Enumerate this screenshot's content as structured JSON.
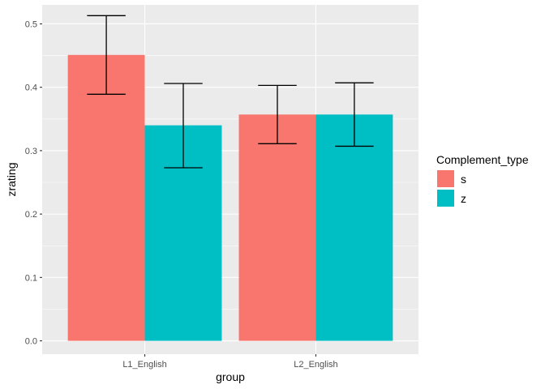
{
  "chart_data": {
    "type": "bar",
    "categories": [
      "L1_English",
      "L2_English"
    ],
    "series": [
      {
        "name": "s",
        "color": "#F8766D",
        "values": [
          0.451,
          0.357
        ],
        "error_low": [
          0.389,
          0.311
        ],
        "error_high": [
          0.513,
          0.403
        ]
      },
      {
        "name": "z",
        "color": "#00BFC4",
        "values": [
          0.34,
          0.357
        ],
        "error_low": [
          0.273,
          0.307
        ],
        "error_high": [
          0.406,
          0.407
        ]
      }
    ],
    "xlabel": "group",
    "ylabel": "zrating",
    "ylim": [
      -0.021,
      0.53
    ],
    "yticks": [
      0.0,
      0.1,
      0.2,
      0.3,
      0.4,
      0.5
    ],
    "ytick_labels": [
      "0.0",
      "0.1",
      "0.2",
      "0.3",
      "0.4",
      "0.5"
    ],
    "legend_title": "Complement_type",
    "legend_position": "right",
    "grid": true,
    "panel_color": "#EBEBEB",
    "error_bar_color": "#000000"
  }
}
